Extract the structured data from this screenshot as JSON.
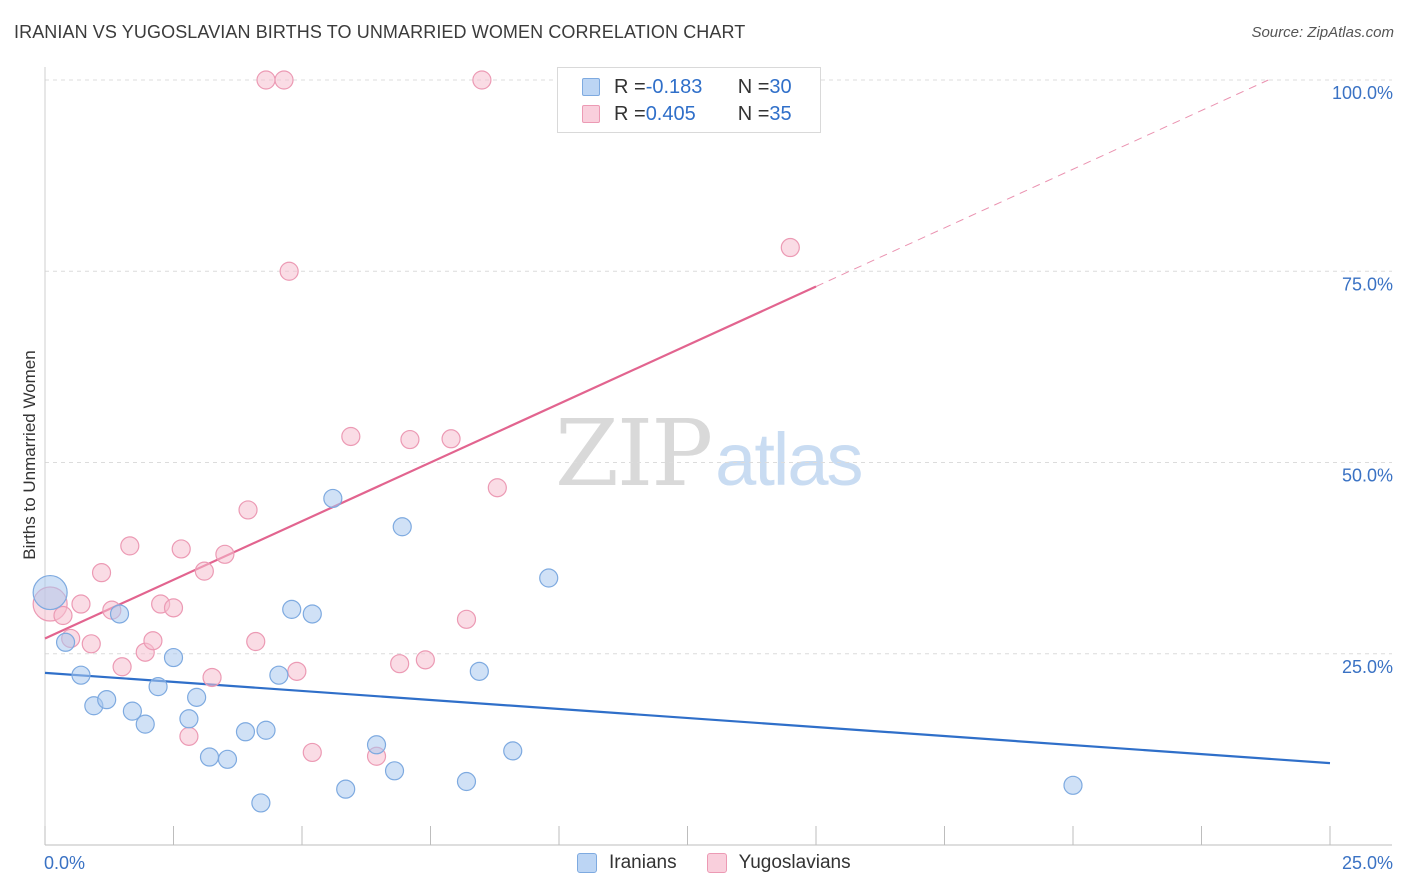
{
  "header": {
    "title": "IRANIAN VS YUGOSLAVIAN BIRTHS TO UNMARRIED WOMEN CORRELATION CHART",
    "source": "Source: ZipAtlas.com"
  },
  "watermark": {
    "zip": "ZIP",
    "atlas": "atlas"
  },
  "colors": {
    "blue_fill": "#a9c8ef",
    "blue_stroke": "#7eaae0",
    "blue_line": "#2f6fc9",
    "pink_fill": "#f6bfd0",
    "pink_stroke": "#ec9ab4",
    "pink_line": "#e2648f",
    "tick_text": "#3a72c4",
    "grid": "#dcdcdc"
  },
  "legend": {
    "rows": [
      {
        "r_label": "R = ",
        "r_value": "-0.183",
        "n_label": "N = ",
        "n_value": "30"
      },
      {
        "r_label": "R = ",
        "r_value": "0.405",
        "n_label": "N = ",
        "n_value": "35"
      }
    ]
  },
  "bottom_legend": [
    "Iranians",
    "Yugoslavians"
  ],
  "chart_data": {
    "type": "scatter",
    "title": "IRANIAN VS YUGOSLAVIAN BIRTHS TO UNMARRIED WOMEN CORRELATION CHART",
    "xlabel": "",
    "ylabel": "Births to Unmarried Women",
    "xlim": [
      0,
      25
    ],
    "ylim": [
      0,
      100
    ],
    "x_tick_labels": [
      "0.0%",
      "25.0%"
    ],
    "y_tick_labels": [
      "25.0%",
      "50.0%",
      "75.0%",
      "100.0%"
    ],
    "y_ticks": [
      25,
      50,
      75,
      100
    ],
    "grid": true,
    "series": [
      {
        "name": "Iranians",
        "r": -0.183,
        "n": 30,
        "trend": {
          "x": [
            0,
            25
          ],
          "y": [
            22.5,
            10.7
          ],
          "dashed_extension": false
        },
        "points": [
          {
            "x": 0.1,
            "y": 33.0,
            "big": true
          },
          {
            "x": 0.4,
            "y": 26.5
          },
          {
            "x": 0.7,
            "y": 22.2
          },
          {
            "x": 0.95,
            "y": 18.2
          },
          {
            "x": 1.2,
            "y": 19.0
          },
          {
            "x": 1.45,
            "y": 30.2
          },
          {
            "x": 1.7,
            "y": 17.5
          },
          {
            "x": 1.95,
            "y": 15.8
          },
          {
            "x": 2.2,
            "y": 20.7
          },
          {
            "x": 2.5,
            "y": 24.5
          },
          {
            "x": 2.8,
            "y": 16.5
          },
          {
            "x": 2.95,
            "y": 19.3
          },
          {
            "x": 3.2,
            "y": 11.5
          },
          {
            "x": 3.55,
            "y": 11.2
          },
          {
            "x": 3.9,
            "y": 14.8
          },
          {
            "x": 4.2,
            "y": 5.5
          },
          {
            "x": 4.3,
            "y": 15.0
          },
          {
            "x": 4.55,
            "y": 22.2
          },
          {
            "x": 4.8,
            "y": 30.8
          },
          {
            "x": 5.2,
            "y": 30.2
          },
          {
            "x": 5.6,
            "y": 45.3
          },
          {
            "x": 5.85,
            "y": 7.3
          },
          {
            "x": 6.45,
            "y": 13.1
          },
          {
            "x": 6.8,
            "y": 9.7
          },
          {
            "x": 6.95,
            "y": 41.6
          },
          {
            "x": 8.2,
            "y": 8.3
          },
          {
            "x": 8.45,
            "y": 22.7
          },
          {
            "x": 9.1,
            "y": 12.3
          },
          {
            "x": 9.8,
            "y": 34.9
          },
          {
            "x": 20.0,
            "y": 7.8
          }
        ]
      },
      {
        "name": "Yugoslavians",
        "r": 0.405,
        "n": 35,
        "trend": {
          "x": [
            0,
            15
          ],
          "y": [
            27.0,
            73.0
          ],
          "dashed_extension": true,
          "dashed_to": {
            "x": 23.8,
            "y": 100.0
          }
        },
        "points": [
          {
            "x": 0.1,
            "y": 31.5,
            "big": true
          },
          {
            "x": 0.35,
            "y": 30.0
          },
          {
            "x": 0.5,
            "y": 27.0
          },
          {
            "x": 0.7,
            "y": 31.5
          },
          {
            "x": 0.9,
            "y": 26.3
          },
          {
            "x": 1.1,
            "y": 35.6
          },
          {
            "x": 1.3,
            "y": 30.7
          },
          {
            "x": 1.5,
            "y": 23.3
          },
          {
            "x": 1.65,
            "y": 39.1
          },
          {
            "x": 1.95,
            "y": 25.2
          },
          {
            "x": 2.1,
            "y": 26.7
          },
          {
            "x": 2.25,
            "y": 31.5
          },
          {
            "x": 2.5,
            "y": 31.0
          },
          {
            "x": 2.65,
            "y": 38.7
          },
          {
            "x": 2.8,
            "y": 14.2
          },
          {
            "x": 3.1,
            "y": 35.8
          },
          {
            "x": 3.25,
            "y": 21.9
          },
          {
            "x": 3.5,
            "y": 38.0
          },
          {
            "x": 3.95,
            "y": 43.8
          },
          {
            "x": 4.1,
            "y": 26.6
          },
          {
            "x": 4.3,
            "y": 100.0
          },
          {
            "x": 4.65,
            "y": 100.0
          },
          {
            "x": 4.75,
            "y": 75.0
          },
          {
            "x": 4.9,
            "y": 22.7
          },
          {
            "x": 5.2,
            "y": 12.1
          },
          {
            "x": 5.95,
            "y": 53.4
          },
          {
            "x": 6.45,
            "y": 11.6
          },
          {
            "x": 6.9,
            "y": 23.7
          },
          {
            "x": 7.1,
            "y": 53.0
          },
          {
            "x": 7.4,
            "y": 24.2
          },
          {
            "x": 7.9,
            "y": 53.1
          },
          {
            "x": 8.2,
            "y": 29.5
          },
          {
            "x": 8.5,
            "y": 100.0
          },
          {
            "x": 8.8,
            "y": 46.7
          },
          {
            "x": 14.5,
            "y": 78.1
          }
        ]
      }
    ]
  }
}
